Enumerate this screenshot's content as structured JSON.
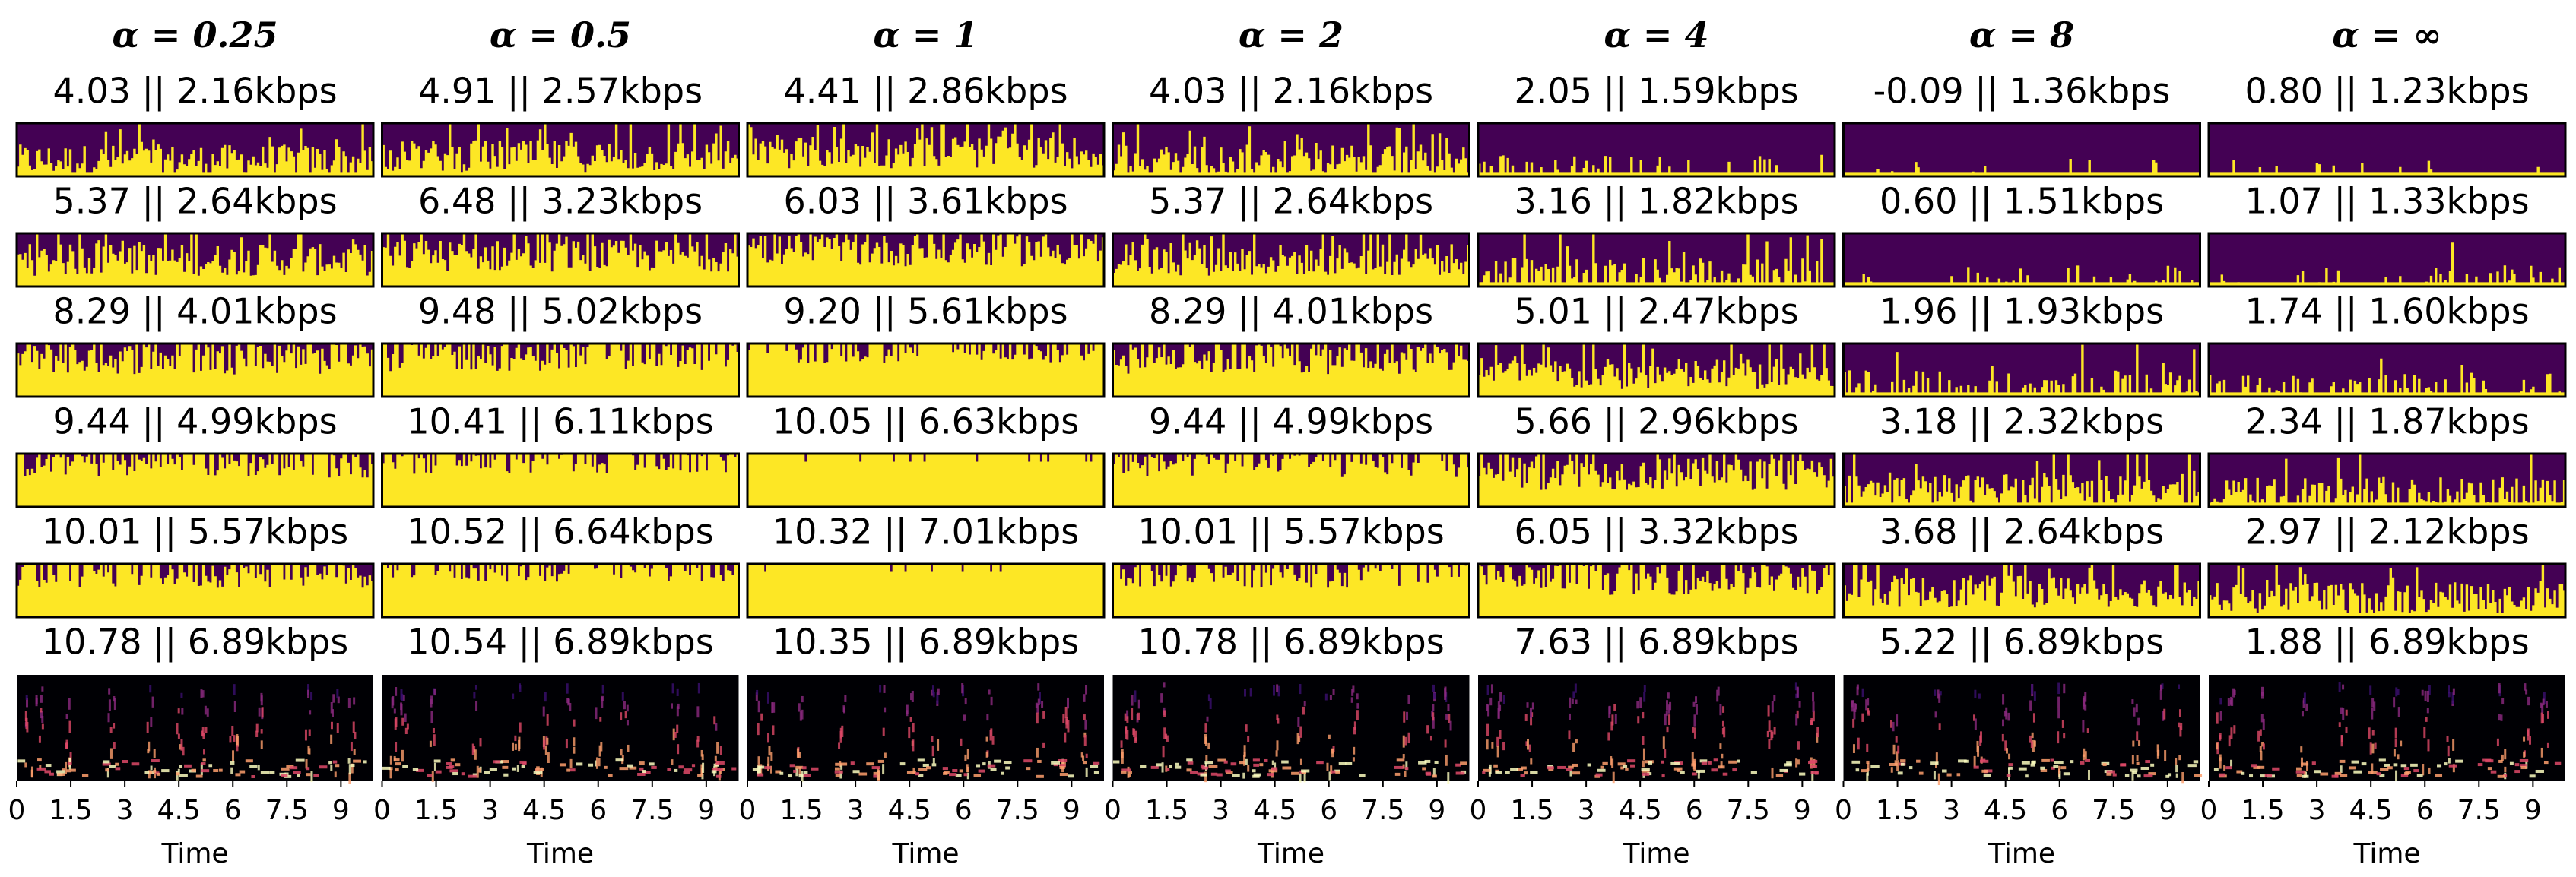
{
  "figure": {
    "columns": [
      {
        "header": "α = 0.25",
        "titles": [
          "4.03 || 2.16kbps",
          "5.37 || 2.64kbps",
          "8.29 || 4.01kbps",
          "9.44 || 4.99kbps",
          "10.01 || 5.57kbps",
          "10.78 || 6.89kbps"
        ]
      },
      {
        "header": "α = 0.5",
        "titles": [
          "4.91 || 2.57kbps",
          "6.48 || 3.23kbps",
          "9.48 || 5.02kbps",
          "10.41 || 6.11kbps",
          "10.52 || 6.64kbps",
          "10.54 || 6.89kbps"
        ]
      },
      {
        "header": "α = 1",
        "titles": [
          "4.41 || 2.86kbps",
          "6.03 || 3.61kbps",
          "9.20 || 5.61kbps",
          "10.05 || 6.63kbps",
          "10.32 || 7.01kbps",
          "10.35 || 6.89kbps"
        ]
      },
      {
        "header": "α = 2",
        "titles": [
          "4.03 || 2.16kbps",
          "5.37 || 2.64kbps",
          "8.29 || 4.01kbps",
          "9.44 || 4.99kbps",
          "10.01 || 5.57kbps",
          "10.78 || 6.89kbps"
        ]
      },
      {
        "header": "α = 4",
        "titles": [
          "2.05 || 1.59kbps",
          "3.16 || 1.82kbps",
          "5.01 || 2.47kbps",
          "5.66 || 2.96kbps",
          "6.05 || 3.32kbps",
          "7.63 || 6.89kbps"
        ]
      },
      {
        "header": "α = 8",
        "titles": [
          "-0.09 || 1.36kbps",
          "0.60 || 1.51kbps",
          "1.96 || 1.93kbps",
          "3.18 || 2.32kbps",
          "3.68 || 2.64kbps",
          "5.22 || 6.89kbps"
        ]
      },
      {
        "header": "α = ∞",
        "titles": [
          "0.80 || 1.23kbps",
          "1.07 || 1.33kbps",
          "1.74 || 1.60kbps",
          "2.34 || 1.87kbps",
          "2.97 || 2.12kbps",
          "1.88 || 6.89kbps"
        ]
      }
    ],
    "x_axis": {
      "label": "Time",
      "xlim": [
        0,
        9.9
      ],
      "xticks": [
        0,
        1.5,
        3,
        4.5,
        6,
        7.5,
        9
      ]
    }
  }
}
